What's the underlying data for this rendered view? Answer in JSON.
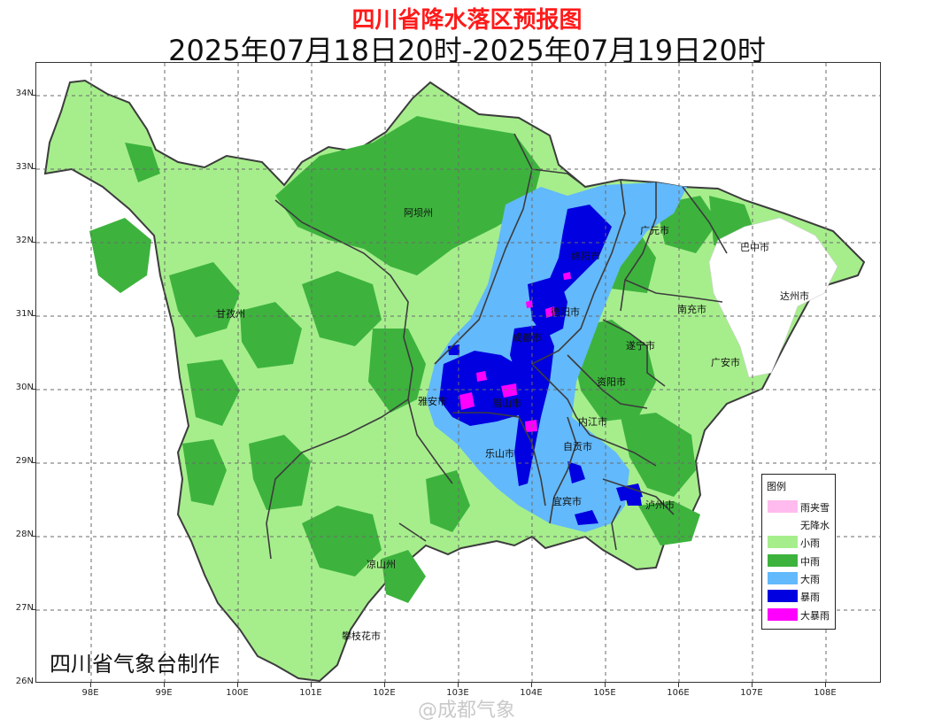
{
  "header": {
    "title": "四川省降水落区预报图",
    "subtitle": "2025年07月18日20时-2025年07月19日20时"
  },
  "axes": {
    "lat_labels": [
      "34N",
      "33N",
      "32N",
      "31N",
      "30N",
      "29N",
      "28N",
      "27N",
      "26N"
    ],
    "lon_labels": [
      "98E",
      "99E",
      "100E",
      "101E",
      "102E",
      "103E",
      "104E",
      "105E",
      "106E",
      "107E",
      "108E"
    ]
  },
  "cities": {
    "aba": "阿坝州",
    "ganzi": "甘孜州",
    "liangshan": "凉山州",
    "panzhihua": "攀枝花市",
    "mianyang": "绵阳市",
    "deyang": "德阳市",
    "chengdu": "成都市",
    "yaan": "雅安市",
    "meishan": "眉山市",
    "leshan": "乐山市",
    "ziyang": "资阳市",
    "neijiang": "内江市",
    "zigong": "自贡市",
    "yibin": "宜宾市",
    "luzhou": "泸州市",
    "guangyuan": "广元市",
    "bazhong": "巴中市",
    "dazhou": "达州市",
    "nanchong": "南充市",
    "suining": "遂宁市",
    "guangan": "广安市"
  },
  "legend": {
    "title": "图例",
    "items": [
      {
        "label": "雨夹雪",
        "color": "#ffbbee"
      },
      {
        "label": "无降水",
        "color": "#ffffff"
      },
      {
        "label": "小雨",
        "color": "#a6ee8c"
      },
      {
        "label": "中雨",
        "color": "#3db33d"
      },
      {
        "label": "大雨",
        "color": "#62b9fc"
      },
      {
        "label": "暴雨",
        "color": "#0000e0"
      },
      {
        "label": "大暴雨",
        "color": "#ff00ff"
      }
    ]
  },
  "credit": "四川省气象台制作",
  "watermark": "@成都气象"
}
